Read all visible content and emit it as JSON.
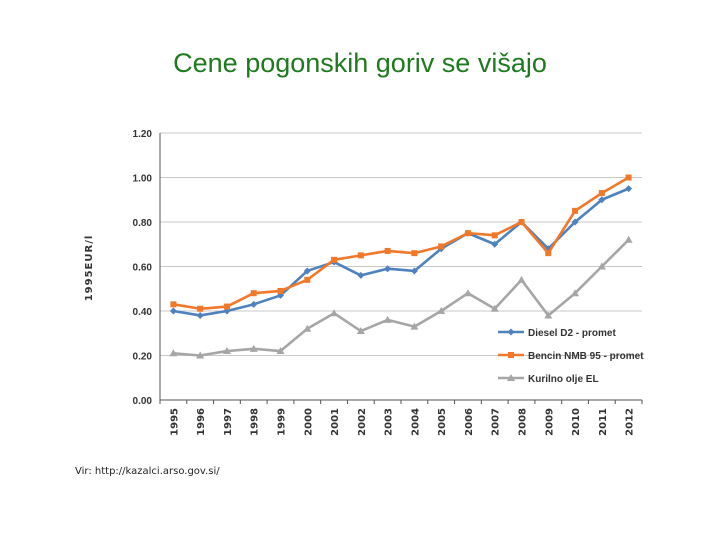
{
  "slide": {
    "title": "Cene pogonskih goriv se višajo",
    "source": "Vir: http://kazalci.arso.gov.si/"
  },
  "colors": {
    "title": "#1f7a1f",
    "grid": "#c8c8c8",
    "axis": "#555555"
  },
  "chart_data": {
    "type": "line",
    "ylabel": "1995EUR/l",
    "ylim": [
      0,
      1.2
    ],
    "yticks": [
      0,
      0.2,
      0.4,
      0.6,
      0.8,
      1.0,
      1.2
    ],
    "ytick_labels": [
      "0.00",
      "0.20",
      "0.40",
      "0.60",
      "0.80",
      "1.00",
      "1.20"
    ],
    "x": [
      "1995",
      "1996",
      "1997",
      "1998",
      "1999",
      "2000",
      "2001",
      "2002",
      "2003",
      "2004",
      "2005",
      "2006",
      "2007",
      "2008",
      "2009",
      "2010",
      "2011",
      "2012"
    ],
    "grid": true,
    "legend_position": "bottom-right inside plot",
    "series": [
      {
        "name": "Diesel D2 - promet",
        "color": "#4f81bd",
        "marker": "diamond",
        "values": [
          0.4,
          0.38,
          0.4,
          0.43,
          0.47,
          0.58,
          0.62,
          0.56,
          0.59,
          0.58,
          0.68,
          0.75,
          0.7,
          0.8,
          0.68,
          0.8,
          0.9,
          0.95
        ]
      },
      {
        "name": "Bencin NMB 95 - promet",
        "color": "#f0782a",
        "marker": "square",
        "values": [
          0.43,
          0.41,
          0.42,
          0.48,
          0.49,
          0.54,
          0.63,
          0.65,
          0.67,
          0.66,
          0.69,
          0.75,
          0.74,
          0.8,
          0.66,
          0.85,
          0.93,
          1.0
        ]
      },
      {
        "name": "Kurilno olje EL",
        "color": "#a6a6a6",
        "marker": "triangle",
        "values": [
          0.21,
          0.2,
          0.22,
          0.23,
          0.22,
          0.32,
          0.39,
          0.31,
          0.36,
          0.33,
          0.4,
          0.48,
          0.41,
          0.54,
          0.38,
          0.48,
          0.6,
          0.72
        ]
      }
    ]
  }
}
